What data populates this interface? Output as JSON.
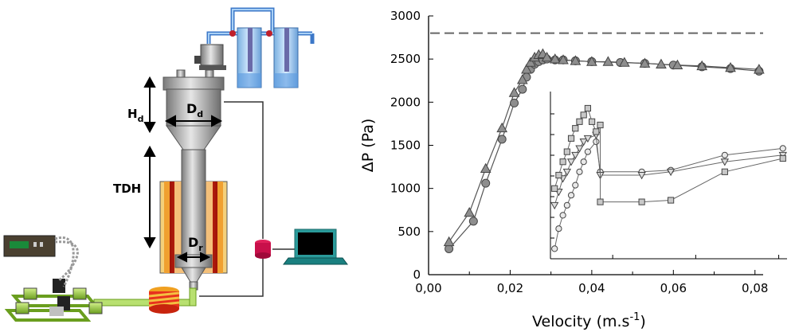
{
  "diagram": {
    "labels": {
      "hd": "H",
      "hd_sub": "d",
      "dd": "D",
      "dd_sub": "d",
      "tdh": "TDH",
      "dr": "D",
      "dr_sub": "r"
    },
    "colors": {
      "steel": "#b8b8b8",
      "heater_red": "#e8321e",
      "heater_orange": "#f0a030",
      "tank_blue": "#9fc8f0",
      "pipe_blue": "#5aa0e6",
      "green": "#9ccf3c",
      "pink": "#e0205a",
      "laptop_screen": "#000000",
      "laptop_body": "#2a9a9a"
    }
  },
  "chart_data": {
    "type": "scatter",
    "xlabel": "Velocity (m.s",
    "xlabel_sup": "-1",
    "xlabel_end": ")",
    "ylabel": "ΔP (Pa)",
    "xlim": [
      0,
      0.082
    ],
    "ylim": [
      0,
      3000
    ],
    "xticks": [
      "0,00",
      "0,02",
      "0,04",
      "0,06",
      "0,08"
    ],
    "xtick_values": [
      0,
      0.02,
      0.04,
      0.06,
      0.08
    ],
    "yticks": [
      "0",
      "500",
      "1000",
      "1500",
      "2000",
      "2500",
      "3000"
    ],
    "ytick_values": [
      0,
      500,
      1000,
      1500,
      2000,
      2500,
      3000
    ],
    "reference_line": 2800,
    "series": [
      {
        "marker": "circle",
        "x": [
          0.005,
          0.011,
          0.014,
          0.018,
          0.021,
          0.023,
          0.024,
          0.025,
          0.026,
          0.027,
          0.028,
          0.029,
          0.031,
          0.033,
          0.036,
          0.04,
          0.047,
          0.053,
          0.06,
          0.067,
          0.074,
          0.081
        ],
        "y": [
          300,
          620,
          1060,
          1570,
          1990,
          2150,
          2290,
          2380,
          2440,
          2470,
          2490,
          2500,
          2490,
          2490,
          2480,
          2470,
          2460,
          2450,
          2430,
          2410,
          2390,
          2360
        ]
      },
      {
        "marker": "triangle",
        "x": [
          0.005,
          0.01,
          0.014,
          0.018,
          0.021,
          0.023,
          0.024,
          0.025,
          0.026,
          0.027,
          0.028,
          0.029,
          0.031,
          0.033,
          0.036,
          0.04,
          0.044,
          0.048,
          0.053,
          0.057,
          0.061,
          0.067,
          0.074,
          0.081
        ],
        "y": [
          380,
          720,
          1230,
          1700,
          2110,
          2260,
          2380,
          2460,
          2520,
          2550,
          2560,
          2520,
          2500,
          2490,
          2480,
          2470,
          2470,
          2460,
          2450,
          2440,
          2430,
          2420,
          2400,
          2380
        ]
      }
    ],
    "inset_series": [
      {
        "marker": "circle",
        "x": [
          0.026,
          0.027,
          0.028,
          0.029,
          0.03,
          0.031,
          0.032,
          0.033,
          0.034,
          0.036,
          0.037,
          0.047,
          0.054,
          0.067,
          0.081
        ],
        "y": [
          0.06,
          0.18,
          0.26,
          0.32,
          0.38,
          0.44,
          0.52,
          0.58,
          0.64,
          0.7,
          0.52,
          0.52,
          0.53,
          0.62,
          0.66
        ]
      },
      {
        "marker": "triangle-down",
        "x": [
          0.026,
          0.027,
          0.028,
          0.029,
          0.03,
          0.031,
          0.032,
          0.033,
          0.034,
          0.036,
          0.037,
          0.047,
          0.054,
          0.067,
          0.081
        ],
        "y": [
          0.32,
          0.4,
          0.48,
          0.52,
          0.58,
          0.62,
          0.66,
          0.7,
          0.72,
          0.74,
          0.5,
          0.5,
          0.52,
          0.58,
          0.62
        ]
      },
      {
        "marker": "square",
        "x": [
          0.026,
          0.027,
          0.028,
          0.029,
          0.03,
          0.031,
          0.032,
          0.033,
          0.034,
          0.035,
          0.036,
          0.037,
          0.037,
          0.047,
          0.054,
          0.067,
          0.081
        ],
        "y": [
          0.42,
          0.5,
          0.58,
          0.64,
          0.72,
          0.78,
          0.82,
          0.86,
          0.9,
          0.82,
          0.76,
          0.8,
          0.34,
          0.34,
          0.35,
          0.52,
          0.6
        ]
      }
    ]
  }
}
